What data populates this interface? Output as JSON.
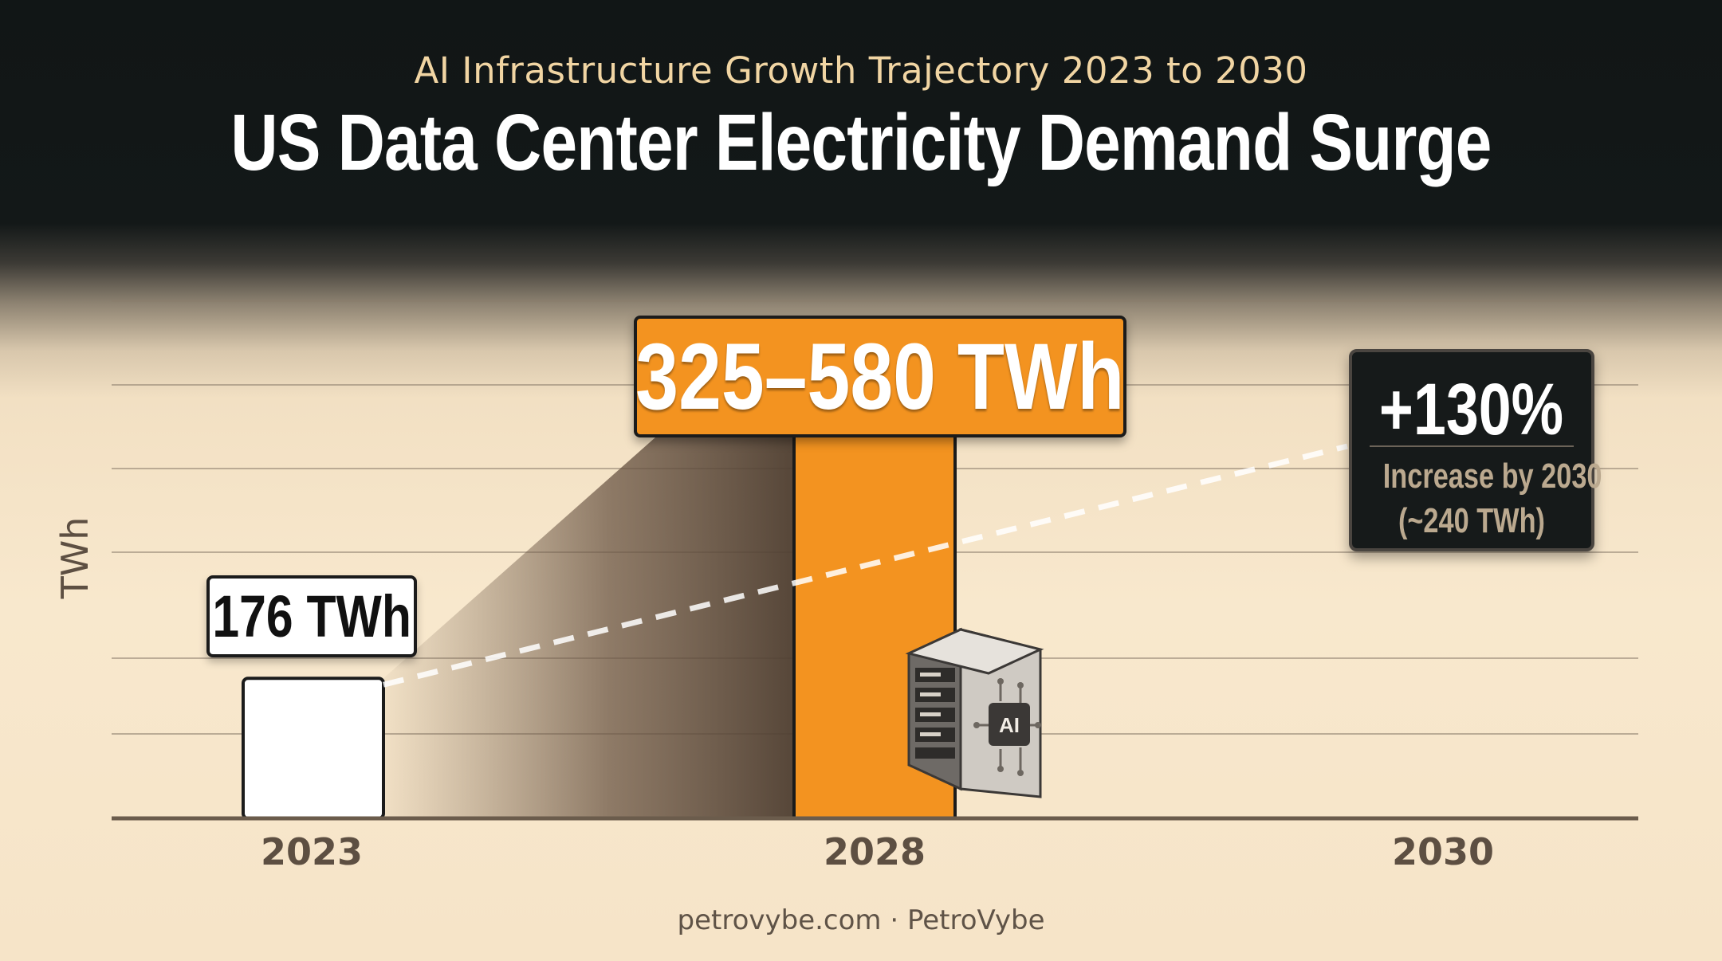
{
  "header": {
    "subtitle": "AI Infrastructure Growth Trajectory 2023 to 2030",
    "title": "US Data Center Electricity Demand Surge"
  },
  "footer": {
    "credit": "petrovybe.com · PetroVybe"
  },
  "chart_data": {
    "type": "bar",
    "title": "US Data Center Electricity Demand Surge",
    "subtitle": "AI Infrastructure Growth Trajectory 2023 to 2030",
    "ylabel": "TWh",
    "xlabel": "",
    "categories": [
      "2023",
      "2028",
      "2030"
    ],
    "values": [
      176,
      580,
      null
    ],
    "range_2028": [
      325,
      580
    ],
    "data_labels": [
      "176 TWh",
      "325–580 TWh",
      ""
    ],
    "ylim": [
      0,
      650
    ],
    "grid": true,
    "trend_line": {
      "style": "dashed",
      "from": "2023",
      "to": "2030"
    },
    "annotation": {
      "headline": "+130%",
      "line1": "Increase by 2030",
      "line2": "(~240 TWh)"
    },
    "colors": {
      "bar_2023": "#ffffff",
      "bar_2028": "#f39320",
      "callout_bg": "#161a1a",
      "axis": "#6b5c4c"
    },
    "icon": "ai-server-rack-icon"
  }
}
